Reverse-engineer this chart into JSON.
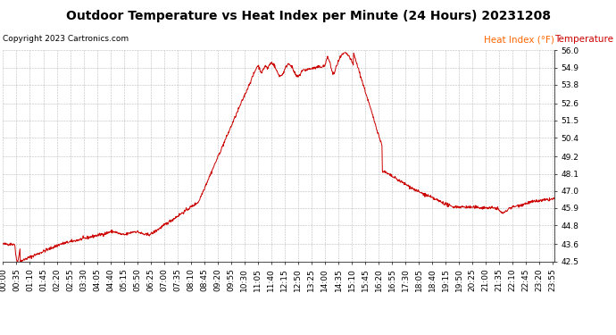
{
  "title": "Outdoor Temperature vs Heat Index per Minute (24 Hours) 20231208",
  "copyright": "Copyright 2023 Cartronics.com",
  "legend_heat_index": "Heat Index (°F)",
  "legend_temperature": "Temperature (°F)",
  "legend_heat_color": "#ff6600",
  "legend_temp_color": "#cc0000",
  "line_color": "#cc0000",
  "background_color": "#ffffff",
  "grid_color": "#aaaaaa",
  "ylim": [
    42.5,
    56.0
  ],
  "yticks": [
    42.5,
    43.6,
    44.8,
    45.9,
    47.0,
    48.1,
    49.2,
    50.4,
    51.5,
    52.6,
    53.8,
    54.9,
    56.0
  ],
  "title_fontsize": 10,
  "copyright_fontsize": 6.5,
  "tick_fontsize": 6.5,
  "legend_fontsize": 7.5,
  "xtick_interval": 35,
  "total_minutes": 1440
}
